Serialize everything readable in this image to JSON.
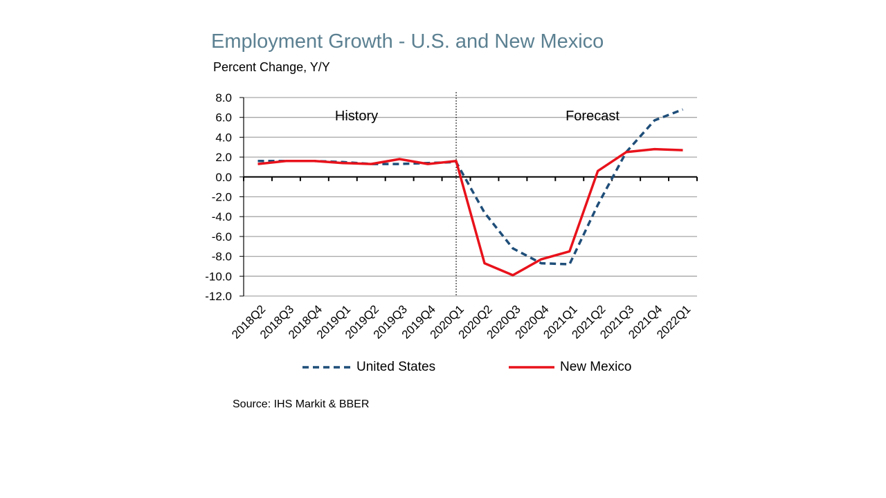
{
  "title": "Employment Growth - U.S. and New Mexico",
  "subtitle": "Percent Change, Y/Y",
  "source": "Source: IHS Markit & BBER",
  "annotations": {
    "history": "History",
    "forecast": "Forecast"
  },
  "colors": {
    "us": "#1f4e79",
    "nm": "#e8121b",
    "title": "#5b8091",
    "grid": "#a6a6a6"
  },
  "legend": [
    {
      "name": "United States",
      "style": "dashed",
      "color": "#1f4e79"
    },
    {
      "name": "New Mexico",
      "style": "solid",
      "color": "#e8121b"
    }
  ],
  "chart_data": {
    "type": "line",
    "title": "Employment Growth - U.S. and New Mexico",
    "ylabel": "Percent Change, Y/Y",
    "xlabel": "",
    "ylim": [
      -12,
      8
    ],
    "yticks": [
      "8.0",
      "6.0",
      "4.0",
      "2.0",
      "0.0",
      "-2.0",
      "-4.0",
      "-6.0",
      "-8.0",
      "-10.0",
      "-12.0"
    ],
    "grid": true,
    "forecast_divider_after": "2020Q1",
    "categories": [
      "2018Q2",
      "2018Q3",
      "2018Q4",
      "2019Q1",
      "2019Q2",
      "2019Q3",
      "2019Q4",
      "2020Q1",
      "2020Q2",
      "2020Q3",
      "2020Q4",
      "2021Q1",
      "2021Q2",
      "2021Q3",
      "2021Q4",
      "2022Q1"
    ],
    "series": [
      {
        "name": "United States",
        "style": "dashed",
        "values": [
          1.6,
          1.6,
          1.6,
          1.5,
          1.3,
          1.3,
          1.4,
          1.5,
          -3.6,
          -7.2,
          -8.7,
          -8.8,
          -2.8,
          2.5,
          5.7,
          6.8
        ]
      },
      {
        "name": "New Mexico",
        "style": "solid",
        "values": [
          1.3,
          1.6,
          1.6,
          1.4,
          1.3,
          1.8,
          1.3,
          1.6,
          -8.7,
          -9.9,
          -8.3,
          -7.5,
          0.6,
          2.5,
          2.8,
          2.7
        ]
      }
    ]
  }
}
